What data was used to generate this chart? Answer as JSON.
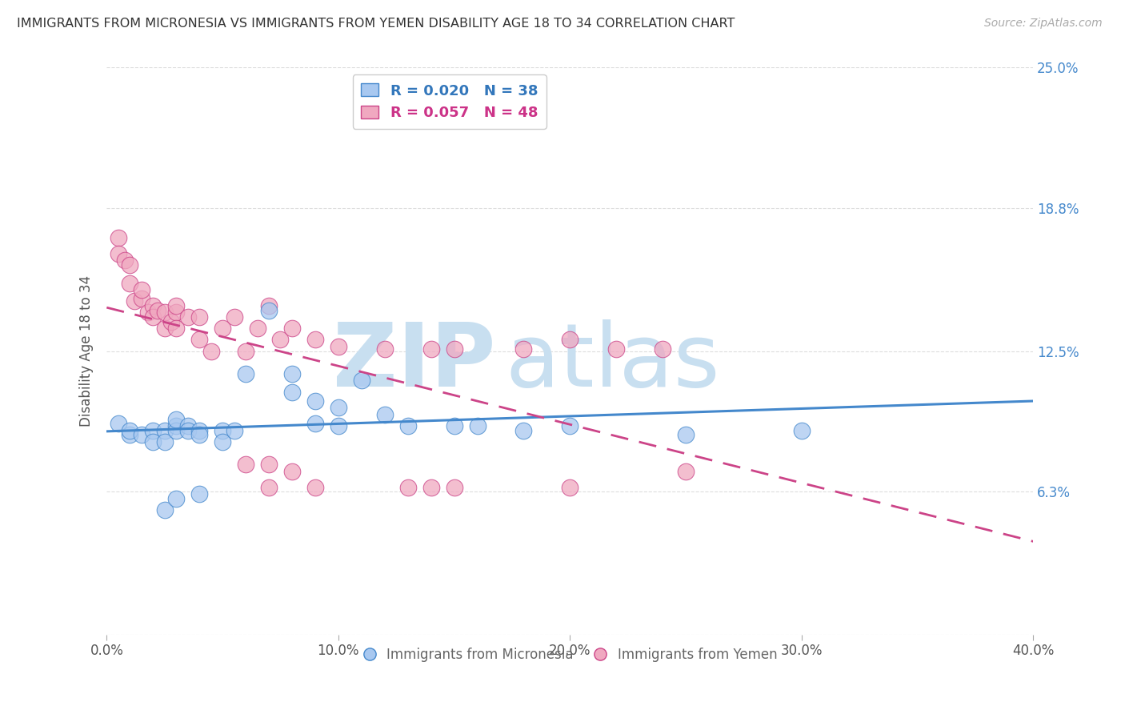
{
  "title": "IMMIGRANTS FROM MICRONESIA VS IMMIGRANTS FROM YEMEN DISABILITY AGE 18 TO 34 CORRELATION CHART",
  "source": "Source: ZipAtlas.com",
  "ylabel": "Disability Age 18 to 34",
  "xlim": [
    0.0,
    0.4
  ],
  "ylim": [
    0.0,
    0.25
  ],
  "ytick_vals": [
    0.0,
    0.063,
    0.125,
    0.188,
    0.25
  ],
  "xtick_vals": [
    0.0,
    0.1,
    0.2,
    0.3,
    0.4
  ],
  "legend_blue_label": "R = 0.020   N = 38",
  "legend_pink_label": "R = 0.057   N = 48",
  "legend_bottom_blue": "Immigrants from Micronesia",
  "legend_bottom_pink": "Immigrants from Yemen",
  "blue_color": "#a8c8f0",
  "pink_color": "#f0a8c0",
  "blue_line_color": "#4488cc",
  "pink_line_color": "#cc4488",
  "blue_text_color": "#3377bb",
  "pink_text_color": "#cc3388",
  "right_axis_color": "#4488cc",
  "micronesia_x": [
    0.005,
    0.01,
    0.01,
    0.015,
    0.02,
    0.02,
    0.025,
    0.025,
    0.03,
    0.03,
    0.03,
    0.035,
    0.035,
    0.04,
    0.04,
    0.05,
    0.05,
    0.055,
    0.06,
    0.07,
    0.08,
    0.08,
    0.09,
    0.09,
    0.1,
    0.1,
    0.11,
    0.12,
    0.13,
    0.15,
    0.16,
    0.18,
    0.2,
    0.25,
    0.3,
    0.025,
    0.03,
    0.04
  ],
  "micronesia_y": [
    0.093,
    0.088,
    0.09,
    0.088,
    0.09,
    0.085,
    0.09,
    0.085,
    0.092,
    0.09,
    0.095,
    0.092,
    0.09,
    0.09,
    0.088,
    0.09,
    0.085,
    0.09,
    0.115,
    0.143,
    0.115,
    0.107,
    0.103,
    0.093,
    0.1,
    0.092,
    0.112,
    0.097,
    0.092,
    0.092,
    0.092,
    0.09,
    0.092,
    0.088,
    0.09,
    0.055,
    0.06,
    0.062
  ],
  "yemen_x": [
    0.005,
    0.005,
    0.008,
    0.01,
    0.01,
    0.012,
    0.015,
    0.015,
    0.018,
    0.02,
    0.02,
    0.022,
    0.025,
    0.025,
    0.028,
    0.03,
    0.03,
    0.03,
    0.035,
    0.04,
    0.04,
    0.045,
    0.05,
    0.055,
    0.06,
    0.065,
    0.07,
    0.075,
    0.08,
    0.09,
    0.1,
    0.12,
    0.14,
    0.15,
    0.2,
    0.22,
    0.18,
    0.24,
    0.2,
    0.25,
    0.14,
    0.06,
    0.07,
    0.07,
    0.08,
    0.09,
    0.13,
    0.15
  ],
  "yemen_y": [
    0.175,
    0.168,
    0.165,
    0.155,
    0.163,
    0.147,
    0.148,
    0.152,
    0.142,
    0.145,
    0.14,
    0.143,
    0.142,
    0.135,
    0.138,
    0.142,
    0.145,
    0.135,
    0.14,
    0.14,
    0.13,
    0.125,
    0.135,
    0.14,
    0.125,
    0.135,
    0.145,
    0.13,
    0.135,
    0.13,
    0.127,
    0.126,
    0.126,
    0.126,
    0.13,
    0.126,
    0.126,
    0.126,
    0.065,
    0.072,
    0.065,
    0.075,
    0.075,
    0.065,
    0.072,
    0.065,
    0.065,
    0.065
  ],
  "background_color": "#ffffff",
  "grid_color": "#dddddd"
}
